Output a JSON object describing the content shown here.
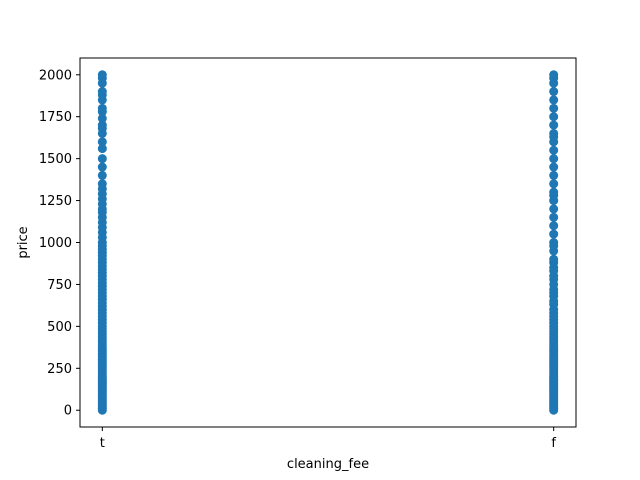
{
  "chart_data": {
    "type": "scatter",
    "xlabel": "cleaning_fee",
    "ylabel": "price",
    "categories": [
      "t",
      "f"
    ],
    "yticks": [
      0,
      250,
      500,
      750,
      1000,
      1250,
      1500,
      1750,
      2000
    ],
    "ylim": [
      -100,
      2100
    ],
    "marker_color": "#1f77b4",
    "grid": false,
    "legend": "none",
    "series": [
      {
        "category": "t",
        "y": [
          0,
          10,
          20,
          30,
          40,
          50,
          60,
          70,
          80,
          90,
          100,
          110,
          120,
          130,
          140,
          150,
          160,
          170,
          180,
          190,
          200,
          215,
          230,
          245,
          260,
          275,
          290,
          305,
          320,
          335,
          350,
          365,
          380,
          395,
          410,
          425,
          440,
          455,
          470,
          485,
          500,
          520,
          540,
          560,
          580,
          600,
          620,
          640,
          660,
          680,
          700,
          720,
          740,
          760,
          780,
          800,
          820,
          840,
          860,
          880,
          900,
          920,
          940,
          960,
          980,
          1000,
          1030,
          1060,
          1090,
          1120,
          1150,
          1180,
          1200,
          1230,
          1260,
          1290,
          1320,
          1350,
          1400,
          1450,
          1500,
          1560,
          1600,
          1650,
          1680,
          1700,
          1740,
          1780,
          1800,
          1850,
          1880,
          1900,
          1950,
          1980,
          2000
        ]
      },
      {
        "category": "f",
        "y": [
          0,
          10,
          20,
          30,
          40,
          50,
          60,
          70,
          80,
          90,
          100,
          110,
          120,
          130,
          140,
          150,
          160,
          170,
          180,
          190,
          200,
          215,
          230,
          245,
          260,
          275,
          290,
          305,
          320,
          335,
          350,
          365,
          380,
          395,
          410,
          425,
          440,
          455,
          470,
          485,
          500,
          520,
          540,
          560,
          580,
          600,
          630,
          650,
          680,
          700,
          720,
          750,
          780,
          800,
          830,
          850,
          880,
          900,
          950,
          980,
          1000,
          1050,
          1100,
          1150,
          1200,
          1250,
          1280,
          1300,
          1350,
          1400,
          1450,
          1500,
          1550,
          1600,
          1630,
          1650,
          1700,
          1750,
          1800,
          1850,
          1900,
          1950,
          1980,
          2000
        ]
      }
    ]
  }
}
